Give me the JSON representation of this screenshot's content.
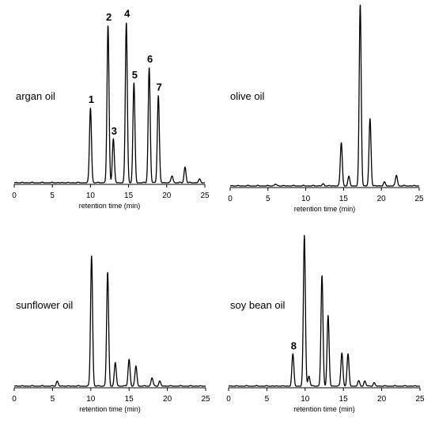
{
  "chart_data": [
    {
      "type": "line",
      "title": "argan oil",
      "xlabel": "retention time (min)",
      "xlim": [
        0,
        25
      ],
      "ylim": [
        0,
        1
      ],
      "x_ticks": [
        0,
        5,
        10,
        15,
        20,
        25
      ],
      "grid": false,
      "peaks": [
        {
          "x": 10.0,
          "h": 0.43,
          "label": "1"
        },
        {
          "x": 12.3,
          "h": 0.9,
          "label": "2"
        },
        {
          "x": 13.0,
          "h": 0.25,
          "label": "3"
        },
        {
          "x": 14.7,
          "h": 0.92,
          "label": "4"
        },
        {
          "x": 15.7,
          "h": 0.57,
          "label": "5"
        },
        {
          "x": 17.7,
          "h": 0.66,
          "label": "6"
        },
        {
          "x": 18.9,
          "h": 0.5,
          "label": "7"
        },
        {
          "x": 20.7,
          "h": 0.04
        },
        {
          "x": 22.4,
          "h": 0.09
        },
        {
          "x": 24.3,
          "h": 0.02
        }
      ]
    },
    {
      "type": "line",
      "title": "olive oil",
      "xlabel": "retention time (min)",
      "xlim": [
        0,
        25
      ],
      "ylim": [
        0,
        1
      ],
      "x_ticks": [
        0,
        5,
        10,
        15,
        20,
        25
      ],
      "grid": false,
      "peaks": [
        {
          "x": 6.0,
          "h": 0.01
        },
        {
          "x": 12.3,
          "h": 0.01
        },
        {
          "x": 14.7,
          "h": 0.24
        },
        {
          "x": 15.7,
          "h": 0.05
        },
        {
          "x": 17.2,
          "h": 1.0
        },
        {
          "x": 18.5,
          "h": 0.37
        },
        {
          "x": 20.4,
          "h": 0.02
        },
        {
          "x": 22.0,
          "h": 0.06
        }
      ]
    },
    {
      "type": "line",
      "title": "sunflower oil",
      "xlabel": "retention time (min)",
      "xlim": [
        0,
        25
      ],
      "ylim": [
        0,
        1
      ],
      "x_ticks": [
        0,
        5,
        10,
        15,
        20,
        25
      ],
      "grid": false,
      "peaks": [
        {
          "x": 5.6,
          "h": 0.03
        },
        {
          "x": 10.1,
          "h": 0.78
        },
        {
          "x": 12.2,
          "h": 0.68
        },
        {
          "x": 13.2,
          "h": 0.14
        },
        {
          "x": 15.0,
          "h": 0.16
        },
        {
          "x": 15.9,
          "h": 0.12
        },
        {
          "x": 18.0,
          "h": 0.05
        },
        {
          "x": 19.0,
          "h": 0.03
        }
      ]
    },
    {
      "type": "line",
      "title": "soy bean oil",
      "xlabel": "retention time (min)",
      "xlim": [
        0,
        25
      ],
      "ylim": [
        0,
        1
      ],
      "x_ticks": [
        0,
        5,
        10,
        15,
        20,
        25
      ],
      "grid": false,
      "peaks": [
        {
          "x": 8.4,
          "h": 0.19,
          "label": "8"
        },
        {
          "x": 9.9,
          "h": 0.9
        },
        {
          "x": 10.5,
          "h": 0.06
        },
        {
          "x": 12.2,
          "h": 0.66
        },
        {
          "x": 13.0,
          "h": 0.42
        },
        {
          "x": 14.8,
          "h": 0.2
        },
        {
          "x": 15.6,
          "h": 0.19
        },
        {
          "x": 17.0,
          "h": 0.03
        },
        {
          "x": 17.8,
          "h": 0.03
        },
        {
          "x": 19.0,
          "h": 0.02
        }
      ]
    }
  ]
}
